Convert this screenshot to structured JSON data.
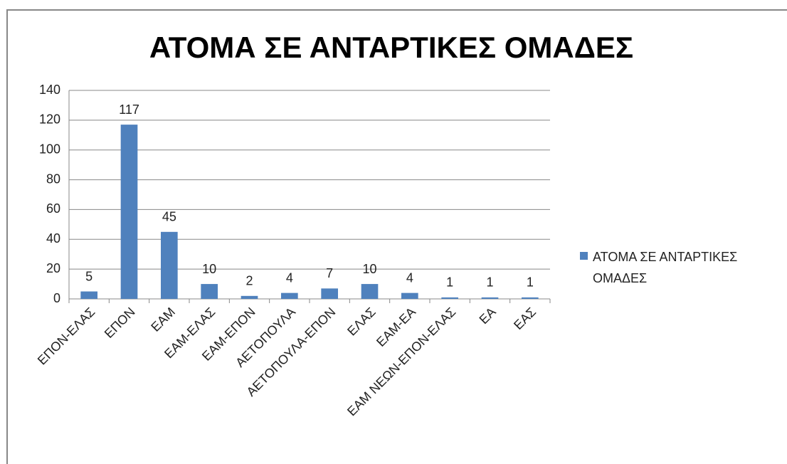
{
  "chart_data": {
    "type": "bar",
    "title": "ΑΤΟΜΑ ΣΕ ΑΝΤΑΡΤΙΚΕΣ ΟΜΑΔΕΣ",
    "categories": [
      "ΕΠΟΝ-ΕΛΑΣ",
      "ΕΠΟΝ",
      "ΕΑΜ",
      "ΕΑΜ-ΕΛΑΣ",
      "ΕΑΜ-ΕΠΟΝ",
      "ΑΕΤΟΠΟΥΛΑ",
      "ΑΕΤΟΠΟΥΛΑ-ΕΠΟΝ",
      "ΕΛΑΣ",
      "ΕΑΜ-ΕΑ",
      "ΕΑΜ ΝΕΩΝ-ΕΠΟΝ-ΕΛΑΣ",
      "ΕΑ",
      "ΕΑΣ"
    ],
    "series": [
      {
        "name": "ΑΤΟΜΑ ΣΕ ΑΝΤΑΡΤΙΚΕΣ ΟΜΑΔΕΣ",
        "color": "#4f81bd",
        "values": [
          5,
          117,
          45,
          10,
          2,
          4,
          7,
          10,
          4,
          1,
          1,
          1
        ]
      }
    ],
    "ylim": [
      0,
      140
    ],
    "yticks": [
      0,
      20,
      40,
      60,
      80,
      100,
      120,
      140
    ],
    "grid": true,
    "legend": "right"
  }
}
